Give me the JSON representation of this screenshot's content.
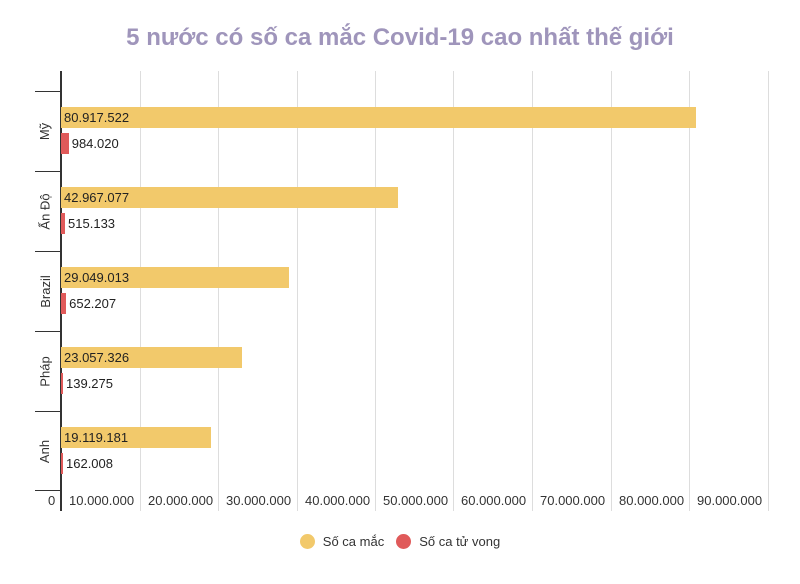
{
  "chart_data": {
    "type": "bar",
    "orientation": "horizontal",
    "title": "5 nước có số ca mắc Covid-19 cao nhất thế giới",
    "categories": [
      "Mỹ",
      "Ấn Độ",
      "Brazil",
      "Pháp",
      "Anh"
    ],
    "series": [
      {
        "name": "Số ca mắc",
        "color": "#f2c96b",
        "values": [
          80917522,
          42967077,
          29049013,
          23057326,
          19119181
        ],
        "labels": [
          "80.917.522",
          "42.967.077",
          "29.049.013",
          "23.057.326",
          "19.119.181"
        ]
      },
      {
        "name": "Số ca tử vong",
        "color": "#e05a5a",
        "values": [
          984020,
          515133,
          652207,
          139275,
          162008
        ],
        "labels": [
          "984.020",
          "515.133",
          "652.207",
          "139.275",
          "162.008"
        ]
      }
    ],
    "xlabel": "",
    "ylabel": "",
    "xlim": [
      0,
      90000000
    ],
    "x_ticks": [
      "0",
      "10.000.000",
      "20.000.000",
      "30.000.000",
      "40.000.000",
      "50.000.000",
      "60.000.000",
      "70.000.000",
      "80.000.000",
      "90.000.000"
    ],
    "grid": true,
    "legend_position": "bottom"
  },
  "title": "5 nước có số ca mắc Covid-19 cao nhất thế giới",
  "legend": [
    {
      "label": "Số ca mắc",
      "color": "#f2c96b"
    },
    {
      "label": "Số ca tử vong",
      "color": "#e05a5a"
    }
  ]
}
